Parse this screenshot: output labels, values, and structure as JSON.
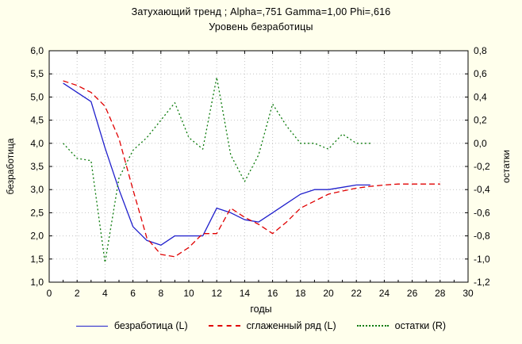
{
  "title": "Затухающий тренд ; Alpha=,751 Gamma=1,00 Phi=,616",
  "subtitle": "Уровень безработицы",
  "colors": {
    "background": "#ffffec",
    "plot_background": "#ffffff",
    "grid": "#c4c4c4",
    "frame": "#000000",
    "unemployment": "#2020cc",
    "smoothed": "#e00000",
    "residuals": "#0a7a0a"
  },
  "axes": {
    "x": {
      "label": "годы",
      "min": 0,
      "max": 30,
      "tick_step": 2,
      "tick_labels": [
        "0",
        "2",
        "4",
        "6",
        "8",
        "10",
        "12",
        "14",
        "16",
        "18",
        "20",
        "22",
        "24",
        "26",
        "28",
        "30"
      ]
    },
    "y_left": {
      "label": "безработица",
      "min": 1.0,
      "max": 6.0,
      "tick_step": 0.5,
      "tick_labels": [
        "6,0",
        "5,5",
        "5,0",
        "4,5",
        "4,0",
        "3,5",
        "3,0",
        "2,5",
        "2,0",
        "1,5",
        "1,0"
      ]
    },
    "y_right": {
      "label": "остатки",
      "min": -1.2,
      "max": 0.8,
      "tick_step": 0.2,
      "tick_labels": [
        "0,8",
        "0,6",
        "0,4",
        "0,2",
        "0,0",
        "-0,2",
        "-0,4",
        "-0,6",
        "-0,8",
        "-1,0",
        "-1,2"
      ]
    }
  },
  "legend": {
    "items": [
      {
        "label": "безработица (L)",
        "style": "solid",
        "color": "#2020cc"
      },
      {
        "label": "сглаженный ряд (L)",
        "style": "dashed",
        "color": "#e00000"
      },
      {
        "label": "остатки (R)",
        "style": "dotted",
        "color": "#0a7a0a"
      }
    ]
  },
  "chart_data": {
    "type": "line",
    "title": "Затухающий тренд ; Alpha=,751 Gamma=1,00 Phi=,616",
    "subtitle": "Уровень безработицы",
    "xlabel": "годы",
    "ylabel_left": "безработица",
    "ylabel_right": "остатки",
    "x_range": [
      0,
      30
    ],
    "y_left_range": [
      1.0,
      6.0
    ],
    "y_right_range": [
      -1.2,
      0.8
    ],
    "grid": true,
    "legend_position": "bottom",
    "series": [
      {
        "name": "безработица (L)",
        "axis": "left",
        "color": "#2020cc",
        "line": "solid",
        "x": [
          1,
          2,
          3,
          4,
          5,
          6,
          7,
          8,
          9,
          10,
          11,
          12,
          13,
          14,
          15,
          16,
          17,
          18,
          19,
          20,
          21,
          22,
          23
        ],
        "values": [
          5.3,
          5.1,
          4.9,
          3.9,
          3.0,
          2.2,
          1.9,
          1.8,
          2.0,
          2.0,
          2.0,
          2.6,
          2.5,
          2.35,
          2.3,
          2.5,
          2.7,
          2.9,
          3.0,
          3.0,
          3.05,
          3.1,
          3.1
        ]
      },
      {
        "name": "сглаженный ряд (L)",
        "axis": "left",
        "color": "#e00000",
        "line": "dashed",
        "x": [
          1,
          2,
          3,
          4,
          5,
          6,
          7,
          8,
          9,
          10,
          11,
          12,
          13,
          14,
          15,
          16,
          17,
          18,
          19,
          20,
          21,
          22,
          23,
          24,
          25,
          26,
          27,
          28
        ],
        "values": [
          5.35,
          5.25,
          5.1,
          4.8,
          4.1,
          3.0,
          1.95,
          1.6,
          1.55,
          1.75,
          2.05,
          2.05,
          2.6,
          2.4,
          2.25,
          2.05,
          2.3,
          2.6,
          2.75,
          2.9,
          2.97,
          3.03,
          3.07,
          3.1,
          3.12,
          3.12,
          3.12,
          3.12
        ]
      },
      {
        "name": "остатки (R)",
        "axis": "right",
        "color": "#0a7a0a",
        "line": "dotted",
        "x": [
          1,
          2,
          3,
          4,
          5,
          6,
          7,
          8,
          9,
          10,
          11,
          12,
          13,
          14,
          15,
          16,
          17,
          18,
          19,
          20,
          21,
          22,
          23
        ],
        "values": [
          0.0,
          -0.13,
          -0.15,
          -1.03,
          -0.3,
          -0.06,
          0.05,
          0.2,
          0.35,
          0.05,
          -0.05,
          0.57,
          -0.1,
          -0.33,
          -0.1,
          0.34,
          0.15,
          0.0,
          0.0,
          -0.05,
          0.08,
          0.0,
          0.0
        ]
      }
    ]
  }
}
